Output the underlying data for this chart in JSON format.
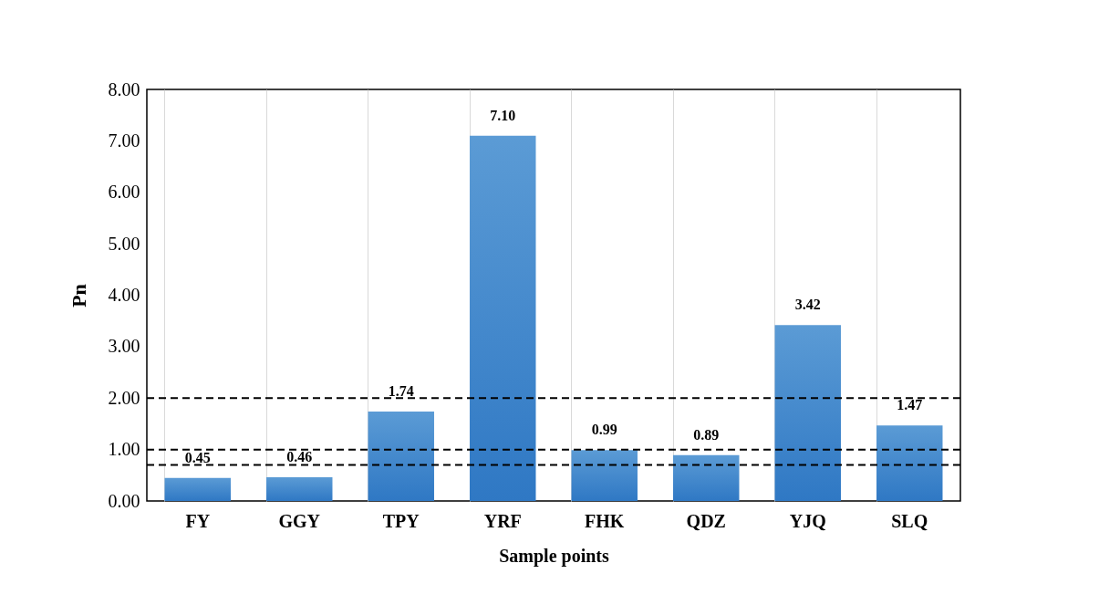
{
  "chart_data": {
    "type": "bar",
    "xlabel": "Sample points",
    "ylabel": "Pn",
    "categories": [
      "FY",
      "GGY",
      "TPY",
      "YRF",
      "FHK",
      "QDZ",
      "YJQ",
      "SLQ"
    ],
    "values": [
      0.45,
      0.46,
      1.74,
      7.1,
      0.99,
      0.89,
      3.42,
      1.47
    ],
    "value_labels": [
      "0.45",
      "0.46",
      "1.74",
      "7.10",
      "0.99",
      "0.89",
      "3.42",
      "1.47"
    ],
    "color": "#5b9bd5",
    "ylim": [
      0,
      8
    ],
    "yticks": [
      {
        "value": 0,
        "label": "0.00"
      },
      {
        "value": 1,
        "label": "1.00"
      },
      {
        "value": 2,
        "label": "2.00"
      },
      {
        "value": 3,
        "label": "3.00"
      },
      {
        "value": 4,
        "label": "4.00"
      },
      {
        "value": 5,
        "label": "5.00"
      },
      {
        "value": 6,
        "label": "6.00"
      },
      {
        "value": 7,
        "label": "7.00"
      },
      {
        "value": 8,
        "label": "8.00"
      }
    ],
    "ref_lines": [
      {
        "axis": "y",
        "value": 2,
        "color": "#000000",
        "line_style": "dashed"
      },
      {
        "axis": "y",
        "value": 1,
        "color": "#000000",
        "line_style": "dashed"
      },
      {
        "axis": "y",
        "value": 0.7,
        "color": "#000000",
        "line_style": "dashed"
      }
    ],
    "grid": "x"
  }
}
